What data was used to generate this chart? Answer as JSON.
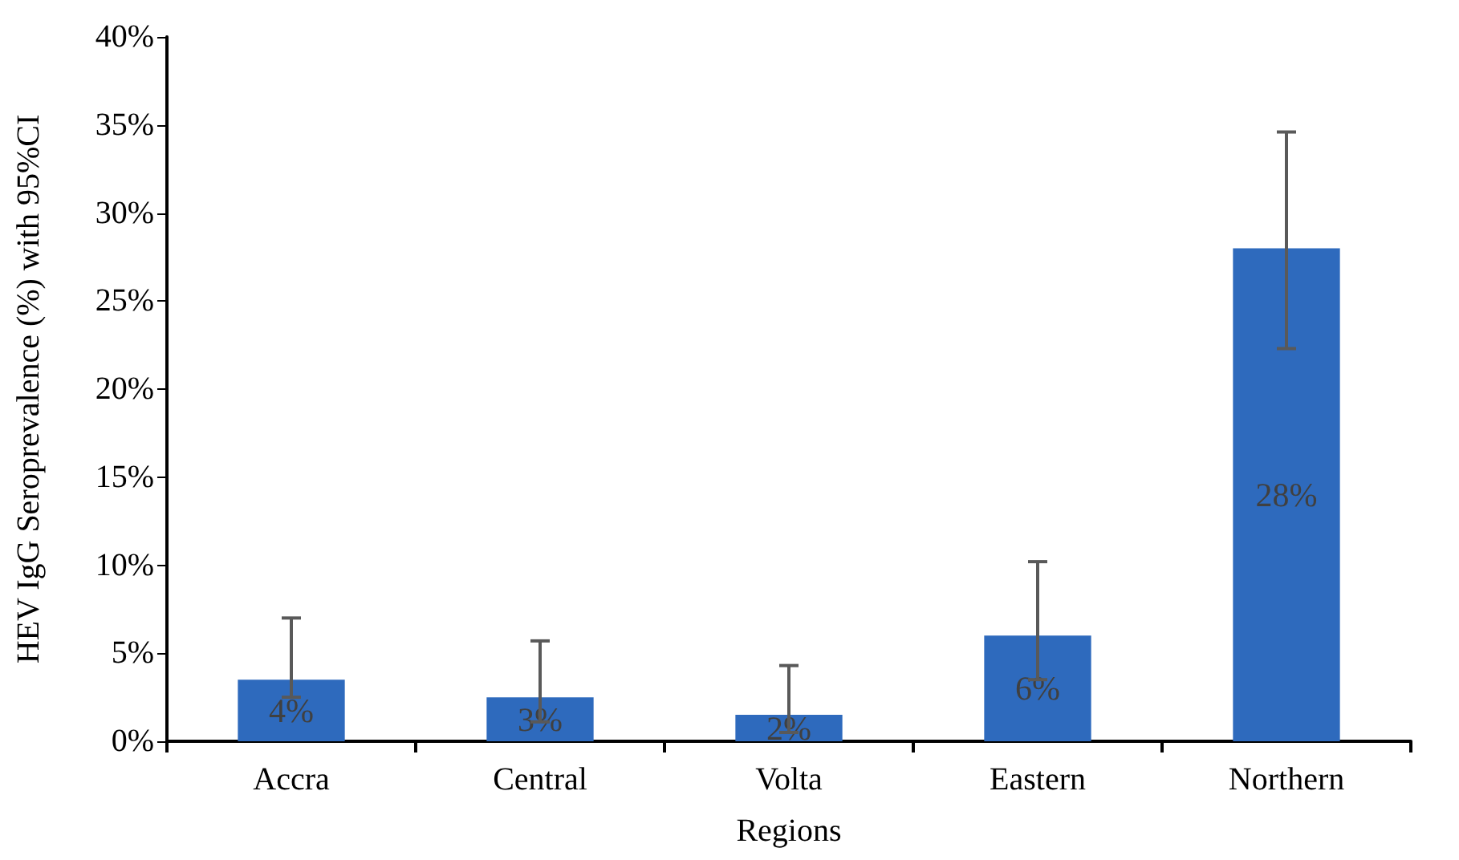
{
  "chart_data": {
    "type": "bar",
    "xlabel": "Regions",
    "ylabel": "HEV IgG Seroprevalence (%) with 95%CI",
    "categories": [
      "Accra",
      "Central",
      "Volta",
      "Eastern",
      "Northern"
    ],
    "values": [
      3.5,
      2.5,
      1.5,
      6.0,
      28.0
    ],
    "errors": [
      [
        2.5,
        7.0
      ],
      [
        1.1,
        5.7
      ],
      [
        0.5,
        4.3
      ],
      [
        3.5,
        10.2
      ],
      [
        22.3,
        34.6
      ]
    ],
    "value_labels": [
      "4%",
      "3%",
      "2%",
      "6%",
      "28%"
    ],
    "color": "#2e6abd",
    "ylim": [
      0,
      40
    ],
    "yticks": [
      {
        "value": 0,
        "label": "0%"
      },
      {
        "value": 5,
        "label": "5%"
      },
      {
        "value": 10,
        "label": "10%"
      },
      {
        "value": 15,
        "label": "15%"
      },
      {
        "value": 20,
        "label": "20%"
      },
      {
        "value": 25,
        "label": "25%"
      },
      {
        "value": 30,
        "label": "30%"
      },
      {
        "value": 35,
        "label": "35%"
      },
      {
        "value": 40,
        "label": "40%"
      }
    ],
    "grid": false
  }
}
